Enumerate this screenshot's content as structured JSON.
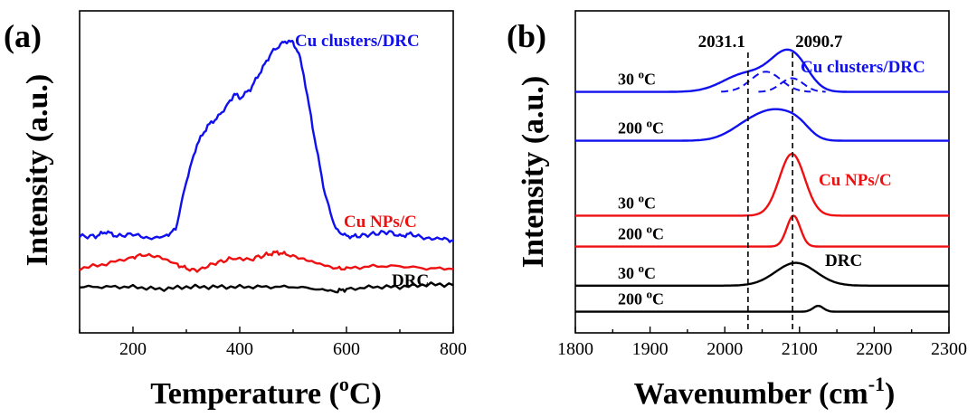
{
  "chart_data": [
    {
      "type": "line",
      "panel_label": "(a)",
      "xlabel": "Temperature (",
      "xlabel_sup": "o",
      "xlabel_end": "C)",
      "ylabel": "Intensity (a.u.)",
      "xlim": [
        100,
        800
      ],
      "xticks": [
        "200",
        "400",
        "600",
        "800"
      ],
      "y_ticks_shown": false,
      "series": [
        {
          "name": "Cu clusters/DRC",
          "color": "#1010ee",
          "x": [
            100,
            130,
            150,
            170,
            200,
            230,
            260,
            280,
            300,
            320,
            340,
            360,
            380,
            390,
            400,
            420,
            440,
            460,
            480,
            490,
            500,
            510,
            520,
            540,
            560,
            580,
            600,
            620,
            650,
            680,
            700,
            720,
            750,
            780,
            800
          ],
          "y": [
            0.12,
            0.12,
            0.14,
            0.12,
            0.13,
            0.11,
            0.12,
            0.15,
            0.36,
            0.52,
            0.6,
            0.64,
            0.7,
            0.74,
            0.72,
            0.76,
            0.84,
            0.92,
            0.96,
            0.97,
            0.96,
            0.92,
            0.82,
            0.55,
            0.3,
            0.15,
            0.12,
            0.12,
            0.13,
            0.14,
            0.12,
            0.13,
            0.11,
            0.11,
            0.1
          ]
        },
        {
          "name": "Cu NPs/C",
          "color": "#ee1010",
          "x": [
            100,
            150,
            200,
            220,
            250,
            280,
            300,
            320,
            350,
            380,
            420,
            450,
            470,
            490,
            520,
            550,
            580,
            600,
            650,
            700,
            750,
            800
          ],
          "y": [
            -0.02,
            0.0,
            0.03,
            0.04,
            0.03,
            0.0,
            -0.02,
            -0.03,
            0.0,
            0.02,
            0.02,
            0.04,
            0.05,
            0.04,
            0.02,
            0.0,
            -0.02,
            -0.02,
            -0.01,
            -0.01,
            -0.02,
            -0.02
          ]
        },
        {
          "name": "DRC",
          "color": "#000000",
          "x": [
            100,
            150,
            200,
            250,
            300,
            350,
            400,
            450,
            500,
            550,
            580,
            600,
            650,
            700,
            750,
            800
          ],
          "y": [
            -0.1,
            -0.1,
            -0.1,
            -0.11,
            -0.1,
            -0.1,
            -0.1,
            -0.1,
            -0.1,
            -0.11,
            -0.12,
            -0.11,
            -0.1,
            -0.1,
            -0.09,
            -0.09
          ]
        }
      ]
    },
    {
      "type": "line",
      "panel_label": "(b)",
      "xlabel": "Wavenumber (cm",
      "xlabel_sup": "-1",
      "xlabel_end": ")",
      "ylabel": "Intensity (a.u.)",
      "xlim": [
        1800,
        2300
      ],
      "xticks": [
        "1800",
        "1900",
        "2000",
        "2100",
        "2200",
        "2300"
      ],
      "y_ticks_shown": false,
      "reference_lines": [
        {
          "x": 2031.1,
          "label": "2031.1"
        },
        {
          "x": 2090.7,
          "label": "2090.7"
        }
      ],
      "series_labels": [
        {
          "text": "Cu clusters/DRC",
          "color": "#1010ee"
        },
        {
          "text": "Cu NPs/C",
          "color": "#ee1010"
        },
        {
          "text": "DRC",
          "color": "#000000"
        }
      ],
      "series": [
        {
          "sample": "Cu clusters/DRC",
          "temperature": "30 °C",
          "color": "#1010ee",
          "offset": 7.4,
          "components": [
            {
              "center": 2028,
              "width": 30,
              "height": 0.55
            },
            {
              "center": 2080,
              "width": 22,
              "height": 0.95
            },
            {
              "center": 2100,
              "width": 18,
              "height": 0.4
            }
          ]
        },
        {
          "sample": "Cu clusters/DRC",
          "temperature": "200 °C",
          "color": "#1010ee",
          "offset": 5.9,
          "components": [
            {
              "center": 2040,
              "width": 28,
              "height": 0.62
            },
            {
              "center": 2075,
              "width": 22,
              "height": 0.58
            },
            {
              "center": 2100,
              "width": 16,
              "height": 0.32
            }
          ]
        },
        {
          "sample": "Cu NPs/C",
          "temperature": "30 °C",
          "color": "#ee1010",
          "offset": 3.6,
          "components": [
            {
              "center": 2090,
              "width": 17,
              "height": 1.9
            }
          ]
        },
        {
          "sample": "Cu NPs/C",
          "temperature": "200 °C",
          "color": "#ee1010",
          "offset": 2.65,
          "components": [
            {
              "center": 2092,
              "width": 9,
              "height": 0.95
            }
          ]
        },
        {
          "sample": "DRC",
          "temperature": "30 °C",
          "color": "#000000",
          "offset": 1.45,
          "components": [
            {
              "center": 2095,
              "width": 27,
              "height": 0.7
            }
          ]
        },
        {
          "sample": "DRC",
          "temperature": "200 °C",
          "color": "#000000",
          "offset": 0.65,
          "components": [
            {
              "center": 2125,
              "width": 7,
              "height": 0.18
            }
          ]
        }
      ],
      "dashed_components": [
        {
          "center": 2055,
          "width": 20,
          "height": 0.62
        },
        {
          "center": 2090,
          "width": 15,
          "height": 0.42
        }
      ]
    }
  ]
}
